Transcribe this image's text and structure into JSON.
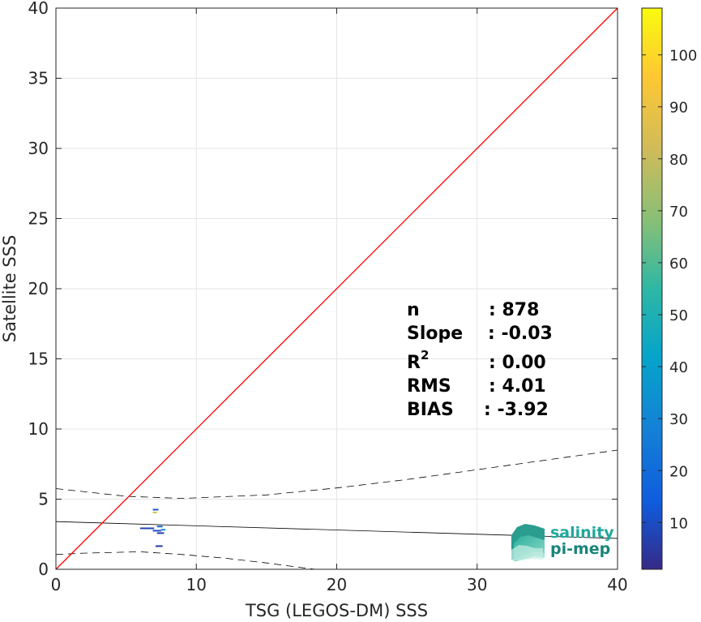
{
  "chart_data": {
    "type": "scatter",
    "title": "",
    "xlabel": "TSG (LEGOS-DM) SSS",
    "ylabel": "Satellite SSS",
    "xlim": [
      0,
      40
    ],
    "ylim": [
      0,
      40
    ],
    "xticks": [
      "0",
      "10",
      "20",
      "30",
      "40"
    ],
    "yticks": [
      "0",
      "5",
      "10",
      "15",
      "20",
      "25",
      "30",
      "35",
      "40"
    ],
    "grid": true,
    "colorbar": {
      "range": [
        1,
        109
      ],
      "ticks": [
        "10",
        "20",
        "30",
        "40",
        "50",
        "60",
        "70",
        "80",
        "90",
        "100"
      ],
      "colormap": "parula"
    },
    "points": [
      {
        "x": 6.0,
        "x2": 7.0,
        "y": 2.92,
        "c": 8
      },
      {
        "x": 6.9,
        "x2": 7.5,
        "y": 2.75,
        "c": 10
      },
      {
        "x": 7.2,
        "x2": 7.7,
        "y": 2.58,
        "c": 6
      },
      {
        "x": 7.2,
        "x2": 7.6,
        "y": 3.05,
        "c": 18
      },
      {
        "x": 7.1,
        "x2": 7.6,
        "y": 1.65,
        "c": 5
      },
      {
        "x": 6.9,
        "x2": 7.3,
        "y": 4.25,
        "c": 12
      },
      {
        "x": 6.9,
        "x2": 7.2,
        "y": 4.05,
        "c": 85
      },
      {
        "x": 7.5,
        "x2": 7.8,
        "y": 2.82,
        "c": 30
      }
    ],
    "identity_line": {
      "from": [
        0,
        0
      ],
      "to": [
        40,
        40
      ],
      "color": "#ff0000"
    },
    "fit_line": {
      "slope": -0.03,
      "intercept": 3.4
    },
    "confidence_band": {
      "upper": [
        [
          0,
          5.75
        ],
        [
          5,
          5.2
        ],
        [
          9,
          5.05
        ],
        [
          15,
          5.3
        ],
        [
          20,
          5.8
        ],
        [
          25,
          6.4
        ],
        [
          30,
          7.1
        ],
        [
          35,
          7.8
        ],
        [
          40,
          8.5
        ]
      ],
      "lower": [
        [
          0,
          1.05
        ],
        [
          2,
          1.15
        ],
        [
          6,
          1.25
        ],
        [
          9,
          1.05
        ],
        [
          12,
          0.8
        ],
        [
          15,
          0.45
        ],
        [
          18,
          0.05
        ],
        [
          18.5,
          0
        ]
      ]
    },
    "stats": [
      {
        "label": "n",
        "value": ": 878"
      },
      {
        "label": "Slope",
        "value": ": -0.03"
      },
      {
        "label": "R",
        "value": ": 0.00"
      },
      {
        "label": "RMS",
        "value": ": 4.01"
      },
      {
        "label": "BIAS",
        "value": ": -3.92"
      }
    ],
    "stats_r_superscript": "2"
  },
  "logo": {
    "line1": "salinity",
    "line2": "pi-mep"
  },
  "colors": {
    "identity": "#ff0000",
    "fit": "#000000",
    "grid": "#e5e5e5",
    "axis": "#262626"
  }
}
